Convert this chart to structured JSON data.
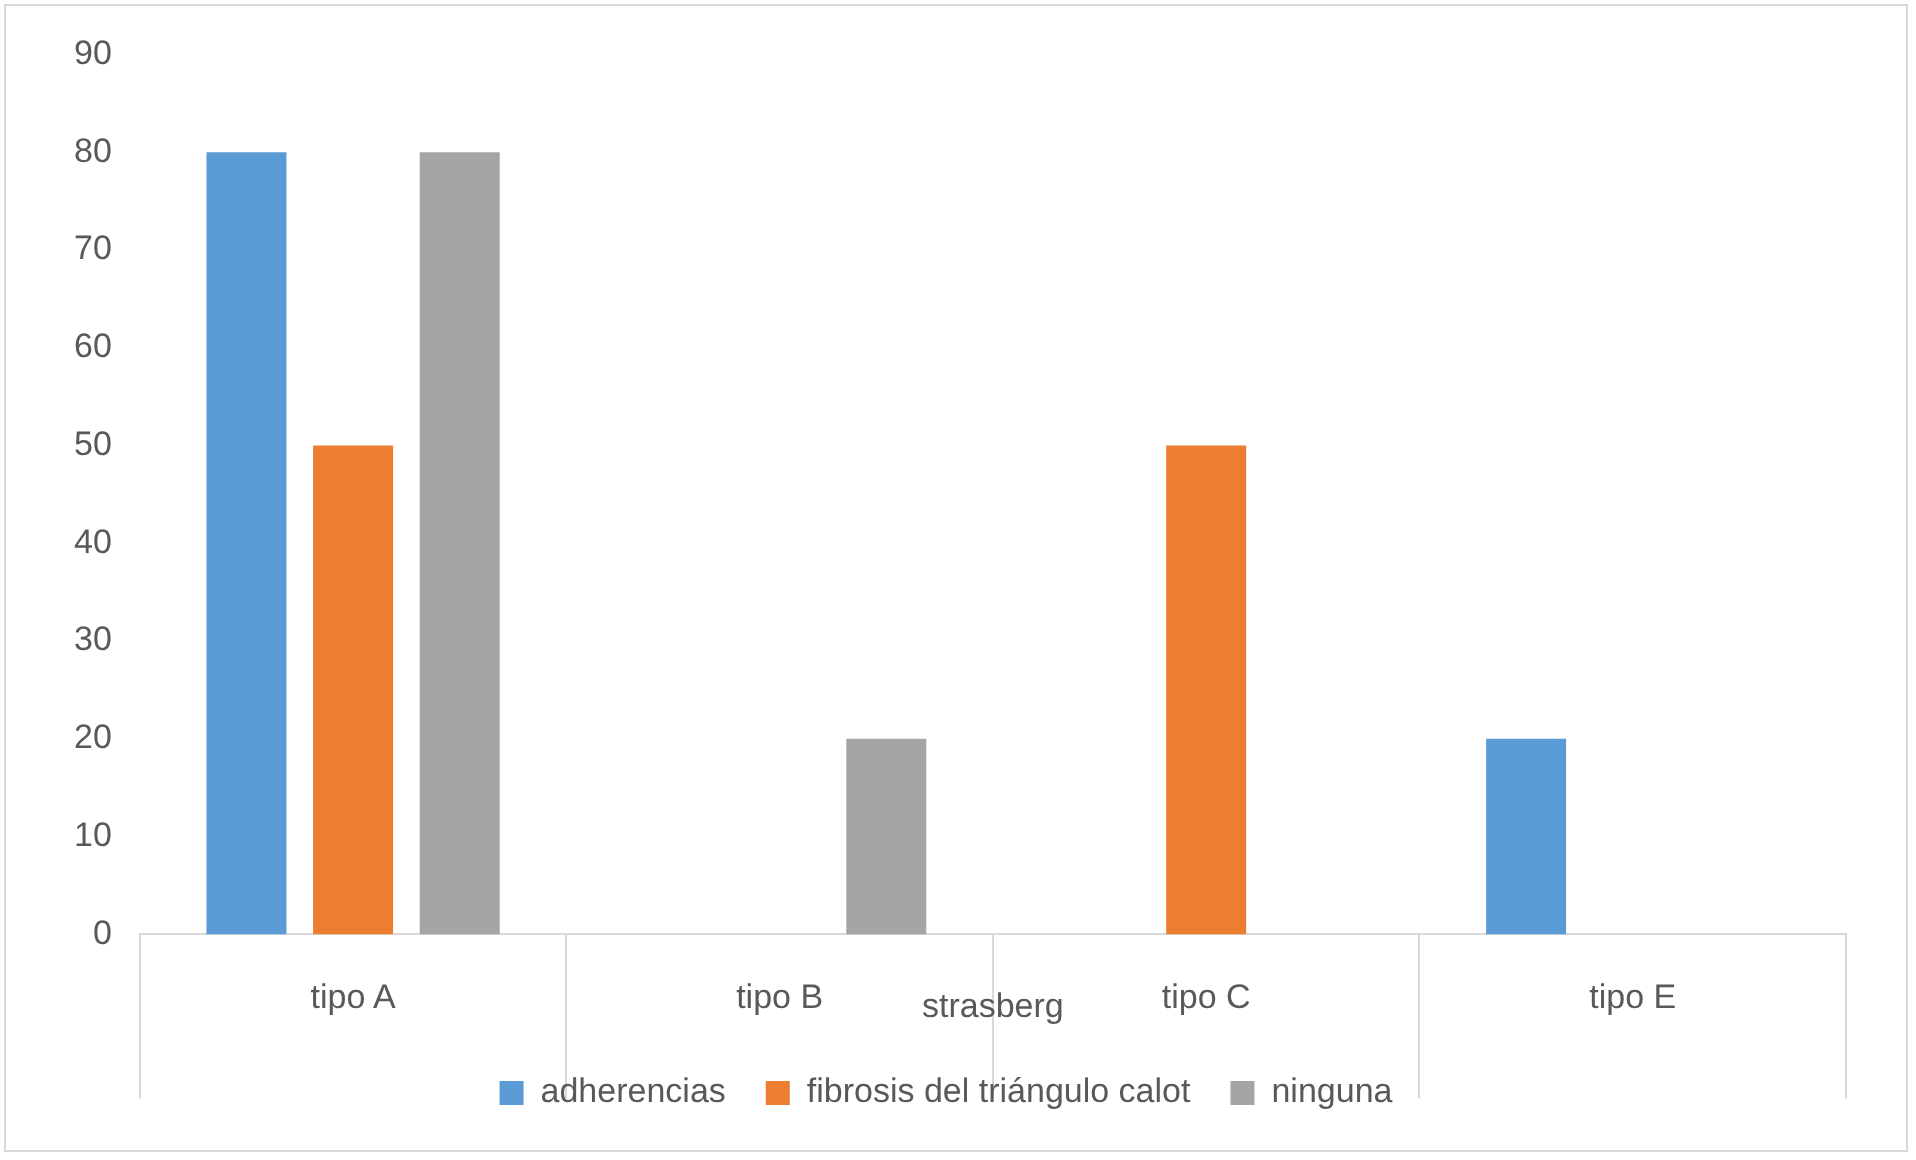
{
  "chart_data": {
    "type": "bar",
    "xlabel": "strasberg",
    "categories": [
      "tipo A",
      "tipo B",
      "tipo C",
      "tipo E"
    ],
    "series": [
      {
        "name": "adherencias",
        "color": "#5b9bd5",
        "values": [
          80,
          0,
          0,
          20
        ]
      },
      {
        "name": "fibrosis del triángulo calot",
        "color": "#ed7d31",
        "values": [
          50,
          0,
          50,
          0
        ]
      },
      {
        "name": "ninguna",
        "color": "#a5a5a5",
        "values": [
          80,
          20,
          0,
          0
        ]
      }
    ],
    "ylim": [
      0,
      90
    ],
    "yticks": [
      0,
      10,
      20,
      30,
      40,
      50,
      60,
      70,
      80,
      90
    ],
    "grid": false,
    "legend": "bottom"
  }
}
